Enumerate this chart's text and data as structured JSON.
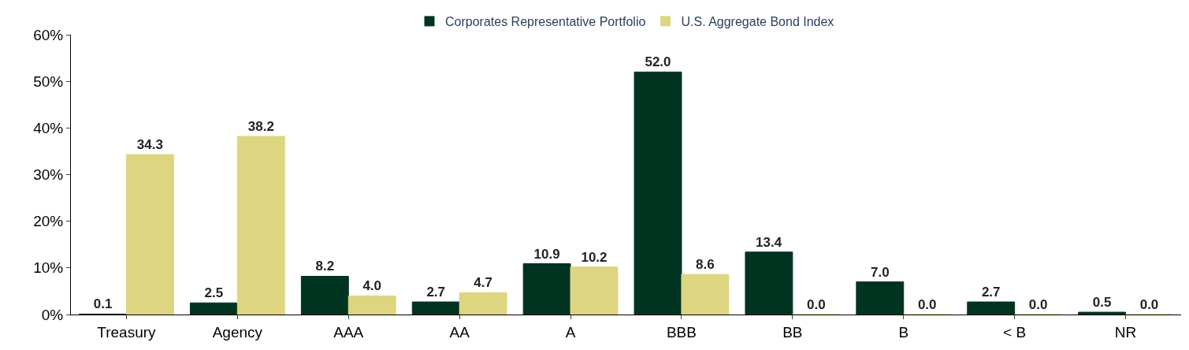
{
  "chart_data": {
    "type": "bar",
    "categories": [
      "Treasury",
      "Agency",
      "AAA",
      "AA",
      "A",
      "BBB",
      "BB",
      "B",
      "< B",
      "NR"
    ],
    "series": [
      {
        "name": "Corporates Representative Portfolio",
        "color": "#003320",
        "values": [
          0.1,
          2.5,
          8.2,
          2.7,
          10.9,
          52.0,
          13.4,
          7.0,
          2.7,
          0.5
        ],
        "value_labels": [
          "0.1",
          "2.5",
          "8.2",
          "2.7",
          "10.9",
          "52.0",
          "13.4",
          "7.0",
          "2.7",
          "0.5"
        ]
      },
      {
        "name": "U.S. Aggregate Bond Index",
        "color": "#ddd580",
        "values": [
          34.3,
          38.2,
          4.0,
          4.7,
          10.2,
          8.6,
          0.0,
          0.0,
          0.0,
          0.0
        ],
        "value_labels": [
          "34.3",
          "38.2",
          "4.0",
          "4.7",
          "10.2",
          "8.6",
          "0.0",
          "0.0",
          "0.0",
          "0.0"
        ]
      }
    ],
    "ylim": [
      0,
      60
    ],
    "yticks": [
      {
        "value": 0,
        "label": "0%"
      },
      {
        "value": 10,
        "label": "10%"
      },
      {
        "value": 20,
        "label": "20%"
      },
      {
        "value": 30,
        "label": "30%"
      },
      {
        "value": 40,
        "label": "40%"
      },
      {
        "value": 50,
        "label": "50%"
      },
      {
        "value": 60,
        "label": "60%"
      }
    ],
    "legend": "top"
  }
}
